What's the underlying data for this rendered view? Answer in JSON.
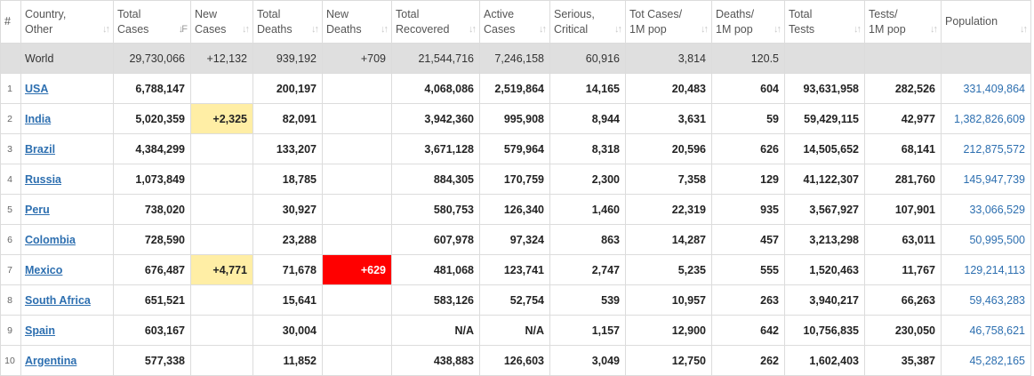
{
  "headers": [
    {
      "l1": "#",
      "l2": ""
    },
    {
      "l1": "Country,",
      "l2": "Other"
    },
    {
      "l1": "Total",
      "l2": "Cases"
    },
    {
      "l1": "New",
      "l2": "Cases"
    },
    {
      "l1": "Total",
      "l2": "Deaths"
    },
    {
      "l1": "New",
      "l2": "Deaths"
    },
    {
      "l1": "Total",
      "l2": "Recovered"
    },
    {
      "l1": "Active",
      "l2": "Cases"
    },
    {
      "l1": "Serious,",
      "l2": "Critical"
    },
    {
      "l1": "Tot Cases/",
      "l2": "1M pop"
    },
    {
      "l1": "Deaths/",
      "l2": "1M pop"
    },
    {
      "l1": "Total",
      "l2": "Tests"
    },
    {
      "l1": "Tests/",
      "l2": "1M pop"
    },
    {
      "l1": "Population",
      "l2": ""
    }
  ],
  "sort_icon": "↓↑",
  "sort_icon_active": "↓F",
  "world": {
    "country": "World",
    "total_cases": "29,730,066",
    "new_cases": "+12,132",
    "total_deaths": "939,192",
    "new_deaths": "+709",
    "total_recovered": "21,544,716",
    "active_cases": "7,246,158",
    "serious": "60,916",
    "cases_per_1m": "3,814",
    "deaths_per_1m": "120.5",
    "total_tests": "",
    "tests_per_1m": "",
    "population": ""
  },
  "rows": [
    {
      "num": "1",
      "country": "USA",
      "total_cases": "6,788,147",
      "new_cases": "",
      "total_deaths": "200,197",
      "new_deaths": "",
      "total_recovered": "4,068,086",
      "active_cases": "2,519,864",
      "serious": "14,165",
      "cases_per_1m": "20,483",
      "deaths_per_1m": "604",
      "total_tests": "93,631,958",
      "tests_per_1m": "282,526",
      "population": "331,409,864"
    },
    {
      "num": "2",
      "country": "India",
      "total_cases": "5,020,359",
      "new_cases": "+2,325",
      "total_deaths": "82,091",
      "new_deaths": "",
      "total_recovered": "3,942,360",
      "active_cases": "995,908",
      "serious": "8,944",
      "cases_per_1m": "3,631",
      "deaths_per_1m": "59",
      "total_tests": "59,429,115",
      "tests_per_1m": "42,977",
      "population": "1,382,826,609"
    },
    {
      "num": "3",
      "country": "Brazil",
      "total_cases": "4,384,299",
      "new_cases": "",
      "total_deaths": "133,207",
      "new_deaths": "",
      "total_recovered": "3,671,128",
      "active_cases": "579,964",
      "serious": "8,318",
      "cases_per_1m": "20,596",
      "deaths_per_1m": "626",
      "total_tests": "14,505,652",
      "tests_per_1m": "68,141",
      "population": "212,875,572"
    },
    {
      "num": "4",
      "country": "Russia",
      "total_cases": "1,073,849",
      "new_cases": "",
      "total_deaths": "18,785",
      "new_deaths": "",
      "total_recovered": "884,305",
      "active_cases": "170,759",
      "serious": "2,300",
      "cases_per_1m": "7,358",
      "deaths_per_1m": "129",
      "total_tests": "41,122,307",
      "tests_per_1m": "281,760",
      "population": "145,947,739"
    },
    {
      "num": "5",
      "country": "Peru",
      "total_cases": "738,020",
      "new_cases": "",
      "total_deaths": "30,927",
      "new_deaths": "",
      "total_recovered": "580,753",
      "active_cases": "126,340",
      "serious": "1,460",
      "cases_per_1m": "22,319",
      "deaths_per_1m": "935",
      "total_tests": "3,567,927",
      "tests_per_1m": "107,901",
      "population": "33,066,529"
    },
    {
      "num": "6",
      "country": "Colombia",
      "total_cases": "728,590",
      "new_cases": "",
      "total_deaths": "23,288",
      "new_deaths": "",
      "total_recovered": "607,978",
      "active_cases": "97,324",
      "serious": "863",
      "cases_per_1m": "14,287",
      "deaths_per_1m": "457",
      "total_tests": "3,213,298",
      "tests_per_1m": "63,011",
      "population": "50,995,500"
    },
    {
      "num": "7",
      "country": "Mexico",
      "total_cases": "676,487",
      "new_cases": "+4,771",
      "total_deaths": "71,678",
      "new_deaths": "+629",
      "total_recovered": "481,068",
      "active_cases": "123,741",
      "serious": "2,747",
      "cases_per_1m": "5,235",
      "deaths_per_1m": "555",
      "total_tests": "1,520,463",
      "tests_per_1m": "11,767",
      "population": "129,214,113"
    },
    {
      "num": "8",
      "country": "South Africa",
      "total_cases": "651,521",
      "new_cases": "",
      "total_deaths": "15,641",
      "new_deaths": "",
      "total_recovered": "583,126",
      "active_cases": "52,754",
      "serious": "539",
      "cases_per_1m": "10,957",
      "deaths_per_1m": "263",
      "total_tests": "3,940,217",
      "tests_per_1m": "66,263",
      "population": "59,463,283"
    },
    {
      "num": "9",
      "country": "Spain",
      "total_cases": "603,167",
      "new_cases": "",
      "total_deaths": "30,004",
      "new_deaths": "",
      "total_recovered": "N/A",
      "active_cases": "N/A",
      "serious": "1,157",
      "cases_per_1m": "12,900",
      "deaths_per_1m": "642",
      "total_tests": "10,756,835",
      "tests_per_1m": "230,050",
      "population": "46,758,621"
    },
    {
      "num": "10",
      "country": "Argentina",
      "total_cases": "577,338",
      "new_cases": "",
      "total_deaths": "11,852",
      "new_deaths": "",
      "total_recovered": "438,883",
      "active_cases": "126,603",
      "serious": "3,049",
      "cases_per_1m": "12,750",
      "deaths_per_1m": "262",
      "total_tests": "1,602,403",
      "tests_per_1m": "35,387",
      "population": "45,282,165"
    }
  ],
  "colors": {
    "link": "#2d6fb0",
    "new_cases_highlight": "#ffeea5",
    "new_deaths_highlight": "#ff0000",
    "world_row": "#dfdfdf"
  }
}
